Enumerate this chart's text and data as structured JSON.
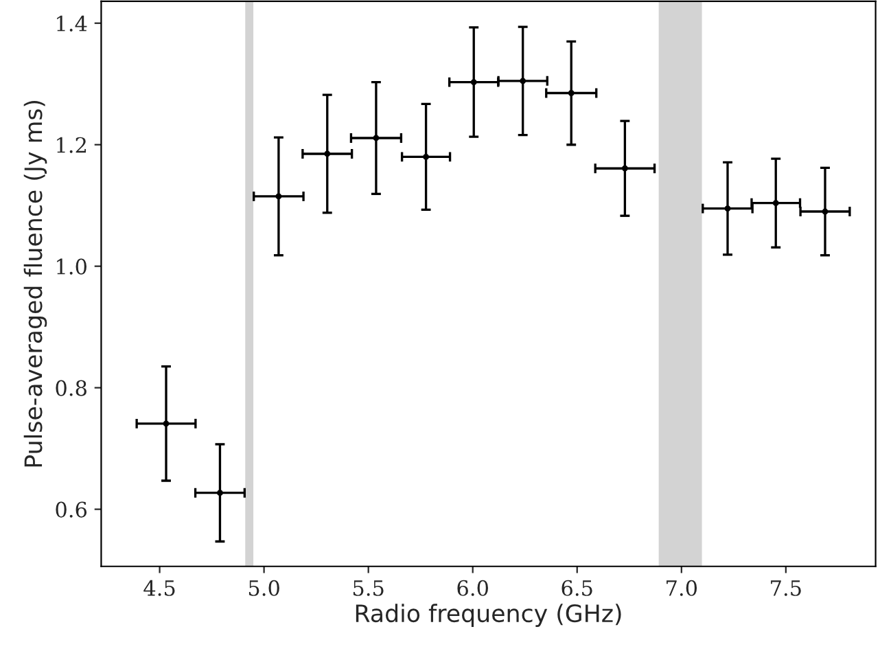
{
  "chart_data": {
    "type": "scatter",
    "xlabel": "Radio frequency (GHz)",
    "ylabel": "Pulse-averaged fluence (Jy ms)",
    "x": [
      4.531,
      4.789,
      5.07,
      5.303,
      5.537,
      5.776,
      6.005,
      6.24,
      6.472,
      6.729,
      7.221,
      7.452,
      7.688
    ],
    "values": [
      0.741,
      0.627,
      1.115,
      1.185,
      1.211,
      1.18,
      1.303,
      1.305,
      1.285,
      1.161,
      1.095,
      1.104,
      1.09
    ],
    "errors": [
      0.094,
      0.08,
      0.097,
      0.097,
      0.092,
      0.087,
      0.09,
      0.089,
      0.085,
      0.078,
      0.076,
      0.073,
      0.072
    ],
    "xerrors": [
      0.141,
      0.118,
      0.119,
      0.118,
      0.12,
      0.115,
      0.117,
      0.117,
      0.12,
      0.142,
      0.119,
      0.116,
      0.118
    ],
    "color": "#000000",
    "grid": false,
    "legend": false,
    "bands": [
      {
        "axis": "x",
        "from": 4.91,
        "to": 4.949,
        "color": "#d3d3d3"
      },
      {
        "axis": "x",
        "from": 6.891,
        "to": 7.098,
        "color": "#d3d3d3"
      }
    ],
    "xlim": [
      4.22,
      7.93
    ],
    "ylim": [
      0.506,
      1.436
    ],
    "xticks": [
      {
        "value": 4.5,
        "label": "4.5"
      },
      {
        "value": 5.0,
        "label": "5.0"
      },
      {
        "value": 5.5,
        "label": "5.5"
      },
      {
        "value": 6.0,
        "label": "6.0"
      },
      {
        "value": 6.5,
        "label": "6.5"
      },
      {
        "value": 7.0,
        "label": "7.0"
      },
      {
        "value": 7.5,
        "label": "7.5"
      }
    ],
    "yticks": [
      0.6,
      0.8,
      {
        "value": 1.0,
        "label": "1.0"
      },
      1.2,
      1.4
    ]
  }
}
